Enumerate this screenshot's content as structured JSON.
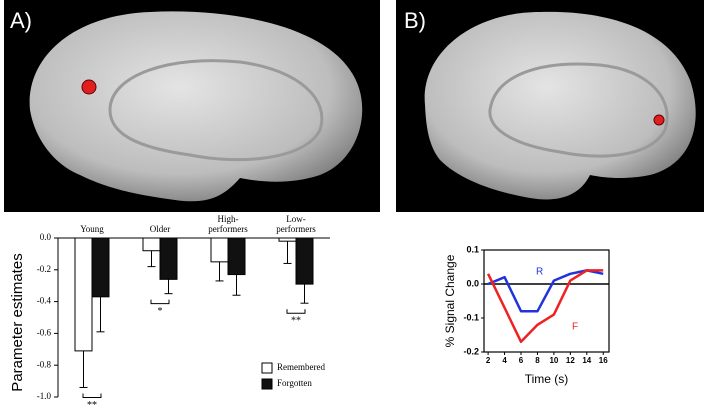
{
  "panels": [
    "A)",
    "B)"
  ],
  "chart_data": [
    {
      "type": "bar",
      "ylabel": "Parameter estimates",
      "categories": [
        "Young",
        "Older",
        "High-performers",
        "Low-performers"
      ],
      "series": [
        {
          "name": "Remembered",
          "color": "#ffffff",
          "values": [
            -0.71,
            -0.08,
            -0.15,
            -0.02
          ],
          "errors": [
            0.23,
            0.1,
            0.12,
            0.14
          ]
        },
        {
          "name": "Forgotten",
          "color": "#111111",
          "values": [
            -0.37,
            -0.26,
            -0.23,
            -0.29
          ],
          "errors": [
            0.22,
            0.09,
            0.13,
            0.12
          ]
        }
      ],
      "ylim": [
        -1.0,
        0.0
      ],
      "yticks": [
        {
          "value": -1.0,
          "label": "-1.0"
        },
        -0.8,
        -0.6,
        -0.4,
        -0.2,
        {
          "value": 0,
          "label": "0.0"
        }
      ],
      "annotations": [
        {
          "category": "Young",
          "text": "**"
        },
        {
          "category": "Older",
          "text": "*"
        },
        {
          "category": "Low-performers",
          "text": "**"
        }
      ],
      "legend": "lower right"
    },
    {
      "type": "line",
      "xlabel": "Time (s)",
      "ylabel": "% Signal Change",
      "x": [
        2,
        4,
        6,
        8,
        10,
        12,
        14,
        16
      ],
      "series": [
        {
          "name": "R",
          "color": "#2233dd",
          "values": [
            0.0,
            0.02,
            -0.08,
            -0.08,
            0.01,
            0.03,
            0.04,
            0.03
          ]
        },
        {
          "name": "F",
          "color": "#ee2222",
          "values": [
            0.03,
            -0.07,
            -0.17,
            -0.12,
            -0.09,
            0.01,
            0.04,
            0.04
          ]
        }
      ],
      "xlim": [
        1.5,
        16.7
      ],
      "ylim": [
        -0.2,
        0.1
      ],
      "xticks": [
        2,
        4,
        6,
        8,
        10,
        12,
        14,
        16
      ],
      "yticks": [
        -0.2,
        -0.1,
        {
          "value": 0,
          "label": "0.0"
        },
        0.1
      ],
      "zero_line": true
    }
  ]
}
